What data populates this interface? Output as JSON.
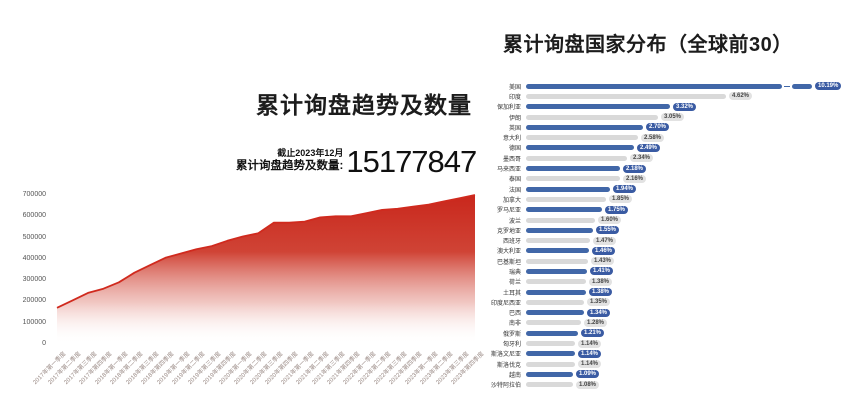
{
  "left_chart": {
    "as_of": "截止2023年12月",
    "total_label": "累计询盘趋势及数量:",
    "total_value": "15177847",
    "line_color": "#d02a1e",
    "area_color": "#c9271c"
  },
  "right_chart": {
    "bar_color_primary": "#4167a8",
    "bar_color_secondary": "#d9d9d9",
    "pill_color_primary": "#3a5ba3",
    "pill_text_primary": "#ffffff",
    "pill_color_secondary": "#e2e2e2",
    "pill_text_secondary": "#444444"
  },
  "chart_data": [
    {
      "type": "area",
      "title": "累计询盘趋势及数量",
      "x": [
        "2017年第一季度",
        "2017年第二季度",
        "2017年第三季度",
        "2017年第四季度",
        "2018年第一季度",
        "2018年第二季度",
        "2018年第三季度",
        "2018年第四季度",
        "2019年第一季度",
        "2019年第二季度",
        "2019年第三季度",
        "2019年第四季度",
        "2020年第一季度",
        "2020年第二季度",
        "2020年第三季度",
        "2020年第四季度",
        "2021年第一季度",
        "2021年第二季度",
        "2021年第三季度",
        "2021年第四季度",
        "2022年第一季度",
        "2022年第二季度",
        "2022年第三季度",
        "2022年第四季度",
        "2023年第一季度",
        "2023年第二季度",
        "2023年第三季度",
        "2023年第四季度"
      ],
      "values": [
        170000,
        205000,
        240000,
        260000,
        290000,
        335000,
        370000,
        405000,
        425000,
        445000,
        460000,
        485000,
        505000,
        520000,
        570000,
        570000,
        575000,
        595000,
        600000,
        600000,
        615000,
        630000,
        635000,
        645000,
        655000,
        670000,
        685000,
        700000
      ],
      "ylim": [
        0,
        700000
      ],
      "yticks": [
        0,
        100000,
        200000,
        300000,
        400000,
        500000,
        600000,
        700000
      ],
      "grid": false
    },
    {
      "type": "bar",
      "orientation": "horizontal",
      "title": "累计询盘国家分布（全球前30）",
      "categories": [
        "美国",
        "印度",
        "保加利亚",
        "伊朗",
        "英国",
        "意大利",
        "德国",
        "墨西哥",
        "马来西亚",
        "泰国",
        "法国",
        "加拿大",
        "罗马尼亚",
        "波兰",
        "克罗地亚",
        "西班牙",
        "澳大利亚",
        "巴基斯坦",
        "瑞典",
        "荷兰",
        "土耳其",
        "印度尼西亚",
        "巴西",
        "南非",
        "俄罗斯",
        "匈牙利",
        "斯洛文尼亚",
        "斯洛伐克",
        "越南",
        "沙特阿拉伯"
      ],
      "values": [
        10.19,
        4.62,
        3.32,
        3.05,
        2.7,
        2.58,
        2.49,
        2.34,
        2.18,
        2.16,
        1.94,
        1.85,
        1.75,
        1.6,
        1.55,
        1.47,
        1.46,
        1.43,
        1.41,
        1.38,
        1.38,
        1.35,
        1.34,
        1.28,
        1.21,
        1.14,
        1.14,
        1.14,
        1.09,
        1.08
      ],
      "labels": [
        "10.19%",
        "4.62%",
        "3.32%",
        "3.05%",
        "2.70%",
        "2.58%",
        "2.49%",
        "2.34%",
        "2.18%",
        "2.16%",
        "1.94%",
        "1.85%",
        "1.75%",
        "1.60%",
        "1.55%",
        "1.47%",
        "1.46%",
        "1.43%",
        "1.41%",
        "1.38%",
        "1.38%",
        "1.35%",
        "1.34%",
        "1.28%",
        "1.21%",
        "1.14%",
        "1.14%",
        "1.14%",
        "1.09%",
        "1.08%"
      ],
      "axis_break_row": 0,
      "legend": false
    }
  ]
}
